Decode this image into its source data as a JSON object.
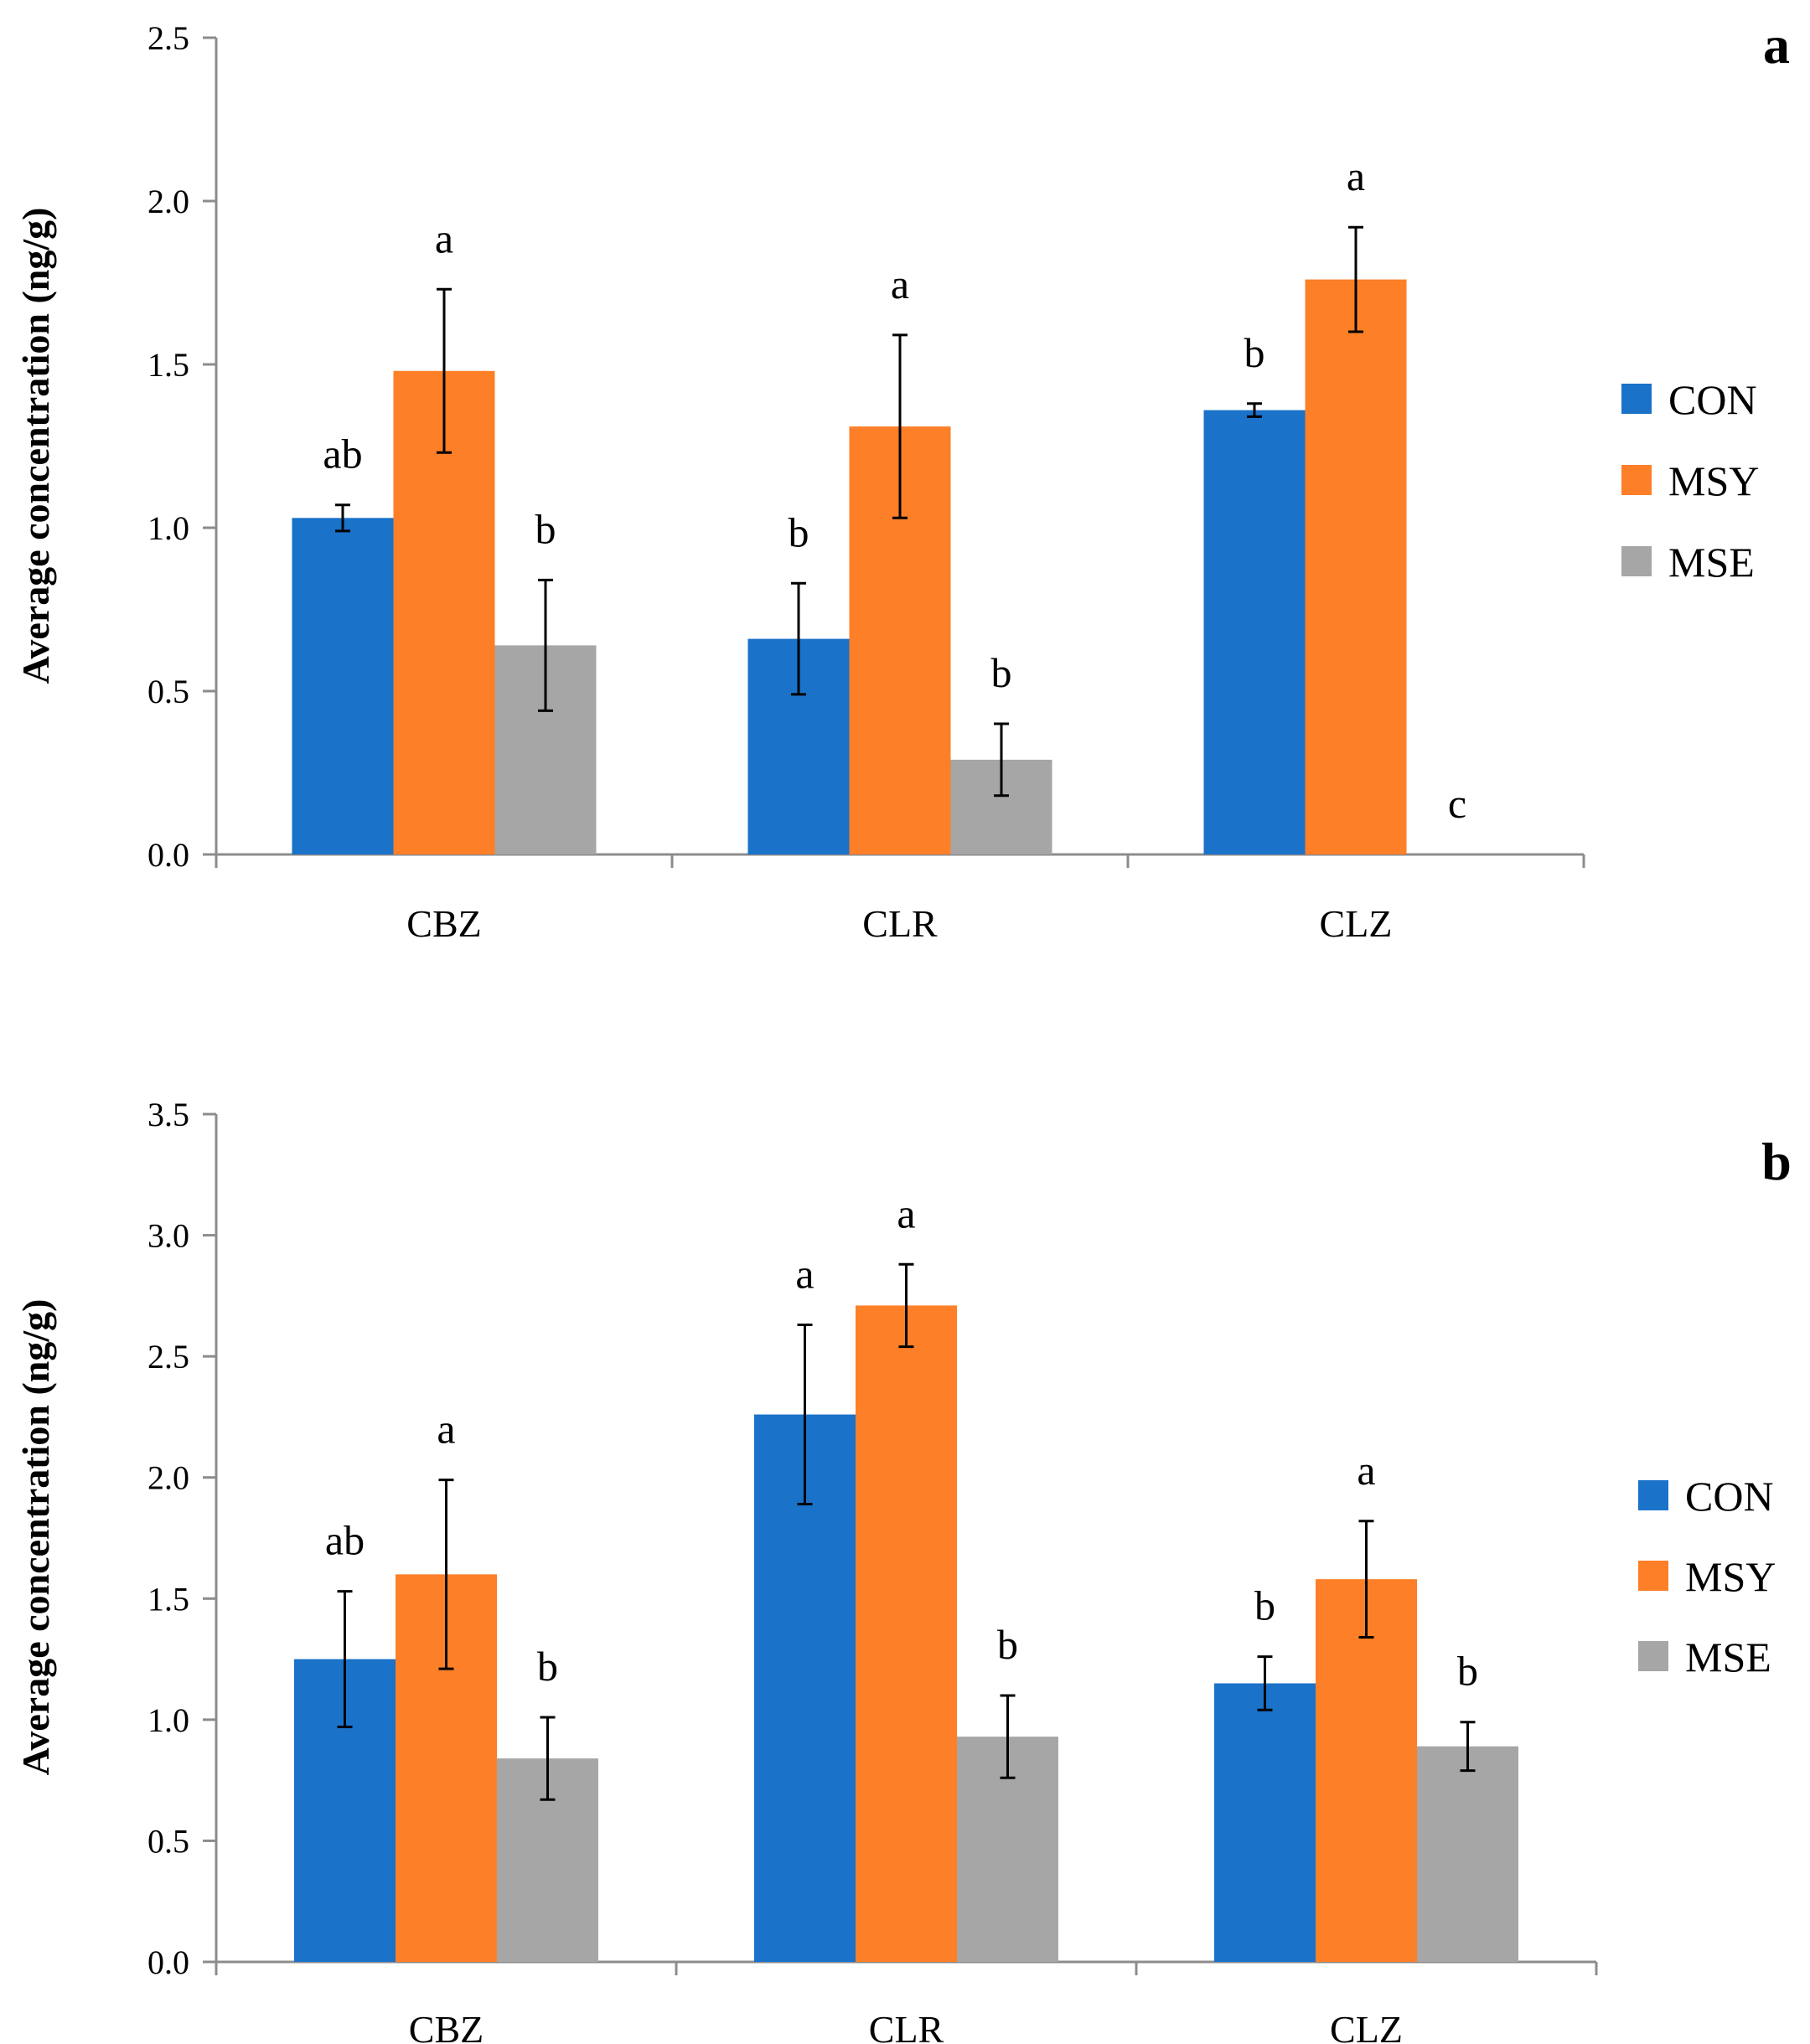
{
  "chart_data": [
    {
      "type": "bar",
      "panel_label": "a",
      "ylabel": "Average concentration (ng/g)",
      "ylim": [
        0,
        2.5
      ],
      "yticks": [
        0.0,
        0.5,
        1.0,
        1.5,
        2.0,
        2.5
      ],
      "ytick_labels": [
        "0.0",
        "0.5",
        "1.0",
        "1.5",
        "2.0",
        "2.5"
      ],
      "categories": [
        "CBZ",
        "CLR",
        "CLZ"
      ],
      "legend_position": "right",
      "series": [
        {
          "name": "CON",
          "color": "#1a72c9",
          "values": [
            1.03,
            0.66,
            1.36
          ],
          "errors": [
            0.04,
            0.17,
            0.02
          ],
          "labels": [
            "ab",
            "b",
            "b"
          ]
        },
        {
          "name": "MSY",
          "color": "#fd7f27",
          "values": [
            1.48,
            1.31,
            1.76
          ],
          "errors": [
            0.25,
            0.28,
            0.16
          ],
          "labels": [
            "a",
            "a",
            "a"
          ]
        },
        {
          "name": "MSE",
          "color": "#a6a6a6",
          "values": [
            0.64,
            0.29,
            0.0
          ],
          "errors": [
            0.2,
            0.11,
            0.0
          ],
          "labels": [
            "b",
            "b",
            "c"
          ]
        }
      ]
    },
    {
      "type": "bar",
      "panel_label": "b",
      "ylabel": "Average concentration (ng/g)",
      "ylim": [
        0,
        3.5
      ],
      "yticks": [
        0.0,
        0.5,
        1.0,
        1.5,
        2.0,
        2.5,
        3.0,
        3.5
      ],
      "ytick_labels": [
        "0.0",
        "0.5",
        "1.0",
        "1.5",
        "2.0",
        "2.5",
        "3.0",
        "3.5"
      ],
      "categories": [
        "CBZ",
        "CLR",
        "CLZ"
      ],
      "legend_position": "right",
      "series": [
        {
          "name": "CON",
          "color": "#1a72c9",
          "values": [
            1.25,
            2.26,
            1.15
          ],
          "errors": [
            0.28,
            0.37,
            0.11
          ],
          "labels": [
            "ab",
            "a",
            "b"
          ]
        },
        {
          "name": "MSY",
          "color": "#fd7f27",
          "values": [
            1.6,
            2.71,
            1.58
          ],
          "errors": [
            0.39,
            0.17,
            0.24
          ],
          "labels": [
            "a",
            "a",
            "a"
          ]
        },
        {
          "name": "MSE",
          "color": "#a6a6a6",
          "values": [
            0.84,
            0.93,
            0.89
          ],
          "errors": [
            0.17,
            0.17,
            0.1
          ],
          "labels": [
            "b",
            "b",
            "b"
          ]
        }
      ]
    }
  ]
}
